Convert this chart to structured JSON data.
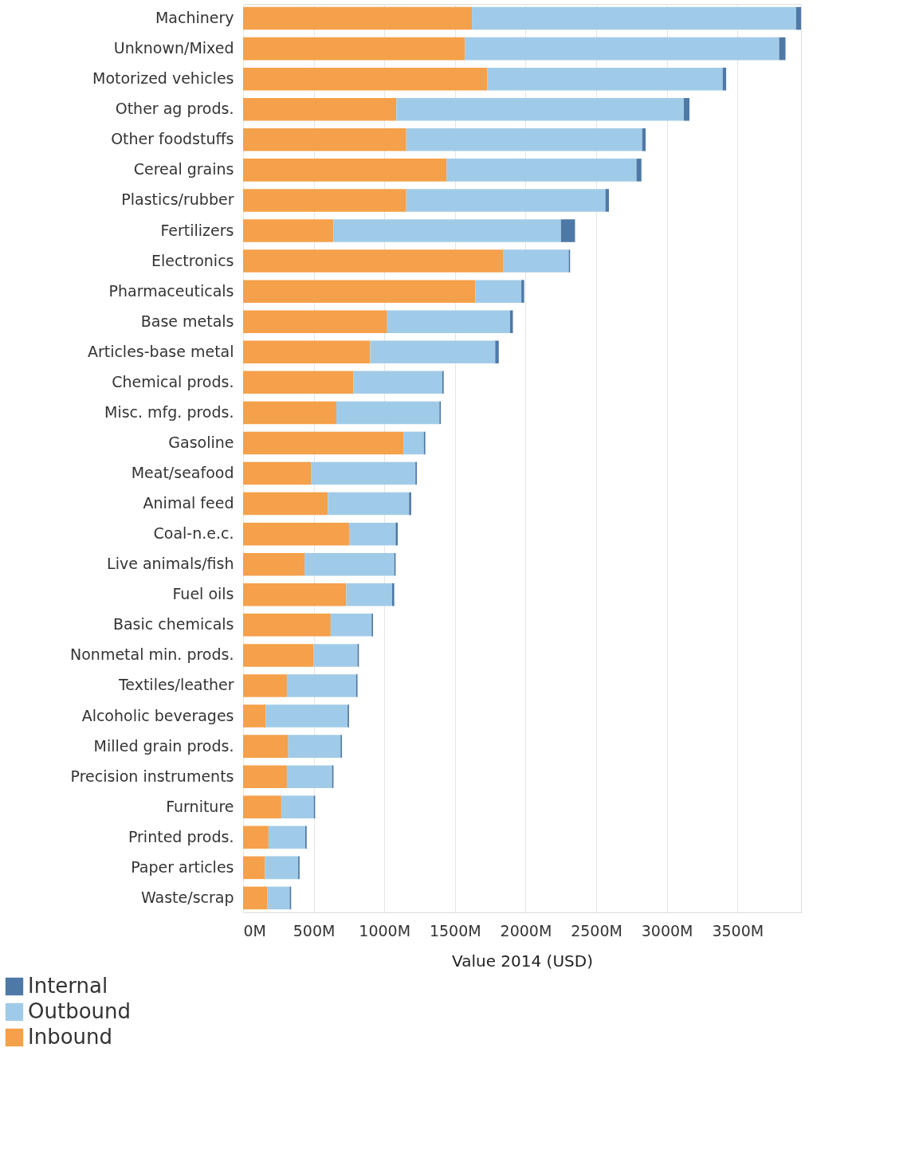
{
  "chart_data": {
    "type": "bar",
    "orientation": "horizontal",
    "stacked": true,
    "xlabel": "Value 2014 (USD)",
    "categories": [
      "Machinery",
      "Unknown/Mixed",
      "Motorized vehicles",
      "Other ag prods.",
      "Other foodstuffs",
      "Cereal grains",
      "Plastics/rubber",
      "Fertilizers",
      "Electronics",
      "Pharmaceuticals",
      "Base metals",
      "Articles-base metal",
      "Chemical prods.",
      "Misc. mfg. prods.",
      "Gasoline",
      "Meat/seafood",
      "Animal feed",
      "Coal-n.e.c.",
      "Live animals/fish",
      "Fuel oils",
      "Basic chemicals",
      "Nonmetal min. prods.",
      "Textiles/leather",
      "Alcoholic beverages",
      "Milled grain prods.",
      "Precision instruments",
      "Furniture",
      "Printed prods.",
      "Paper articles",
      "Waste/scrap"
    ],
    "series": [
      {
        "name": "Inbound",
        "color": "#f5a04a",
        "values": [
          1620,
          1570,
          1730,
          1085,
          1155,
          1440,
          1155,
          640,
          1840,
          1645,
          1020,
          900,
          780,
          660,
          1135,
          480,
          600,
          750,
          435,
          730,
          620,
          500,
          310,
          160,
          320,
          310,
          270,
          180,
          155,
          170
        ]
      },
      {
        "name": "Outbound",
        "color": "#a0cbe8",
        "values": [
          2295,
          2225,
          1665,
          2035,
          1670,
          1345,
          1410,
          1610,
          465,
          325,
          870,
          885,
          630,
          730,
          145,
          740,
          575,
          330,
          635,
          325,
          290,
          310,
          490,
          580,
          370,
          320,
          230,
          260,
          235,
          160
        ]
      },
      {
        "name": "Internal",
        "color": "#4e79a7",
        "values": [
          35,
          45,
          25,
          40,
          25,
          35,
          25,
          100,
          10,
          20,
          20,
          25,
          10,
          10,
          10,
          10,
          15,
          15,
          10,
          15,
          10,
          10,
          10,
          10,
          10,
          10,
          10,
          10,
          10,
          10
        ]
      }
    ],
    "xlim": [
      0,
      3950
    ],
    "xticks": [
      {
        "value": 0,
        "label": "0M"
      },
      {
        "value": 500,
        "label": "500M"
      },
      {
        "value": 1000,
        "label": "1000M"
      },
      {
        "value": 1500,
        "label": "1500M"
      },
      {
        "value": 2000,
        "label": "2000M"
      },
      {
        "value": 2500,
        "label": "2500M"
      },
      {
        "value": 3000,
        "label": "3000M"
      },
      {
        "value": 3500,
        "label": "3500M"
      }
    ],
    "grid": "x",
    "legend": "bottom left"
  }
}
